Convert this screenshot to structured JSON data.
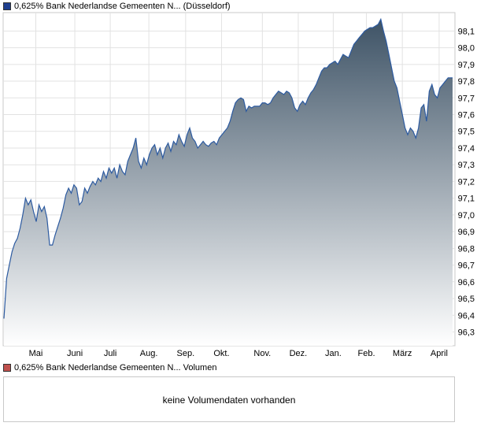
{
  "legend_price": {
    "label": "0,625% Bank Nederlandse Gemeenten N... (Düsseldorf)",
    "color": "#1f3f8f"
  },
  "legend_volume": {
    "label": "0,625% Bank Nederlandse Gemeenten N... Volumen",
    "color": "#c0504d"
  },
  "volume_message": "keine Volumendaten vorhanden",
  "chart_data": {
    "type": "area",
    "title": "",
    "xlabel": "",
    "ylabel": "",
    "ylim": [
      96.2,
      98.2
    ],
    "grid": true,
    "legend_placement": "top-left",
    "line_color": "#2c5aa0",
    "fill_color_top": "#3e5366",
    "fill_color_bottom": "#ffffff",
    "x_ticks": [
      {
        "label": "Mai",
        "t": 0.071
      },
      {
        "label": "Juni",
        "t": 0.158
      },
      {
        "label": "Juli",
        "t": 0.237
      },
      {
        "label": "Aug.",
        "t": 0.323
      },
      {
        "label": "Sep.",
        "t": 0.405
      },
      {
        "label": "Okt.",
        "t": 0.485
      },
      {
        "label": "Nov.",
        "t": 0.576
      },
      {
        "label": "Dez.",
        "t": 0.656
      },
      {
        "label": "Jan.",
        "t": 0.734
      },
      {
        "label": "Feb.",
        "t": 0.808
      },
      {
        "label": "März",
        "t": 0.888
      },
      {
        "label": "April",
        "t": 0.97
      }
    ],
    "y_ticks": [
      "96,3",
      "96,4",
      "96,5",
      "96,6",
      "96,7",
      "96,8",
      "96,9",
      "97,0",
      "97,1",
      "97,2",
      "97,3",
      "97,4",
      "97,5",
      "97,6",
      "97,7",
      "97,8",
      "97,9",
      "98,0",
      "98,1"
    ],
    "y_tick_values": [
      96.3,
      96.4,
      96.5,
      96.6,
      96.7,
      96.8,
      96.9,
      97.0,
      97.1,
      97.2,
      97.3,
      97.4,
      97.5,
      97.6,
      97.7,
      97.8,
      97.9,
      98.0,
      98.1
    ],
    "series": [
      {
        "points": [
          [
            0.0,
            96.38
          ],
          [
            0.006,
            96.62
          ],
          [
            0.012,
            96.7
          ],
          [
            0.018,
            96.78
          ],
          [
            0.024,
            96.83
          ],
          [
            0.03,
            96.86
          ],
          [
            0.036,
            96.92
          ],
          [
            0.042,
            97.0
          ],
          [
            0.048,
            97.1
          ],
          [
            0.054,
            97.06
          ],
          [
            0.06,
            97.09
          ],
          [
            0.066,
            97.02
          ],
          [
            0.072,
            96.96
          ],
          [
            0.078,
            97.06
          ],
          [
            0.084,
            97.02
          ],
          [
            0.09,
            97.05
          ],
          [
            0.096,
            96.98
          ],
          [
            0.102,
            96.82
          ],
          [
            0.108,
            96.82
          ],
          [
            0.114,
            96.88
          ],
          [
            0.12,
            96.93
          ],
          [
            0.126,
            96.98
          ],
          [
            0.132,
            97.04
          ],
          [
            0.138,
            97.12
          ],
          [
            0.144,
            97.16
          ],
          [
            0.15,
            97.13
          ],
          [
            0.156,
            97.18
          ],
          [
            0.162,
            97.16
          ],
          [
            0.168,
            97.06
          ],
          [
            0.174,
            97.08
          ],
          [
            0.18,
            97.16
          ],
          [
            0.186,
            97.13
          ],
          [
            0.192,
            97.17
          ],
          [
            0.198,
            97.2
          ],
          [
            0.204,
            97.18
          ],
          [
            0.21,
            97.22
          ],
          [
            0.216,
            97.2
          ],
          [
            0.222,
            97.26
          ],
          [
            0.228,
            97.22
          ],
          [
            0.234,
            97.28
          ],
          [
            0.24,
            97.25
          ],
          [
            0.246,
            97.28
          ],
          [
            0.252,
            97.22
          ],
          [
            0.258,
            97.3
          ],
          [
            0.264,
            97.26
          ],
          [
            0.27,
            97.24
          ],
          [
            0.276,
            97.32
          ],
          [
            0.282,
            97.36
          ],
          [
            0.288,
            97.4
          ],
          [
            0.294,
            97.46
          ],
          [
            0.3,
            97.32
          ],
          [
            0.306,
            97.28
          ],
          [
            0.312,
            97.34
          ],
          [
            0.318,
            97.3
          ],
          [
            0.324,
            97.36
          ],
          [
            0.33,
            97.4
          ],
          [
            0.336,
            97.42
          ],
          [
            0.342,
            97.36
          ],
          [
            0.348,
            97.4
          ],
          [
            0.354,
            97.34
          ],
          [
            0.36,
            97.4
          ],
          [
            0.366,
            97.43
          ],
          [
            0.372,
            97.38
          ],
          [
            0.378,
            97.44
          ],
          [
            0.384,
            97.42
          ],
          [
            0.39,
            97.48
          ],
          [
            0.396,
            97.44
          ],
          [
            0.402,
            97.41
          ],
          [
            0.408,
            97.48
          ],
          [
            0.414,
            97.52
          ],
          [
            0.42,
            97.46
          ],
          [
            0.426,
            97.44
          ],
          [
            0.432,
            97.4
          ],
          [
            0.438,
            97.42
          ],
          [
            0.444,
            97.44
          ],
          [
            0.45,
            97.42
          ],
          [
            0.456,
            97.41
          ],
          [
            0.462,
            97.43
          ],
          [
            0.468,
            97.44
          ],
          [
            0.474,
            97.42
          ],
          [
            0.48,
            97.46
          ],
          [
            0.486,
            97.48
          ],
          [
            0.492,
            97.5
          ],
          [
            0.498,
            97.52
          ],
          [
            0.504,
            97.56
          ],
          [
            0.51,
            97.62
          ],
          [
            0.516,
            97.67
          ],
          [
            0.522,
            97.69
          ],
          [
            0.528,
            97.7
          ],
          [
            0.534,
            97.69
          ],
          [
            0.54,
            97.62
          ],
          [
            0.546,
            97.65
          ],
          [
            0.552,
            97.64
          ],
          [
            0.558,
            97.65
          ],
          [
            0.564,
            97.65
          ],
          [
            0.57,
            97.65
          ],
          [
            0.576,
            97.67
          ],
          [
            0.582,
            97.67
          ],
          [
            0.588,
            97.66
          ],
          [
            0.594,
            97.67
          ],
          [
            0.6,
            97.7
          ],
          [
            0.606,
            97.72
          ],
          [
            0.612,
            97.74
          ],
          [
            0.618,
            97.73
          ],
          [
            0.624,
            97.72
          ],
          [
            0.63,
            97.74
          ],
          [
            0.636,
            97.73
          ],
          [
            0.642,
            97.7
          ],
          [
            0.648,
            97.64
          ],
          [
            0.654,
            97.62
          ],
          [
            0.66,
            97.66
          ],
          [
            0.666,
            97.68
          ],
          [
            0.672,
            97.66
          ],
          [
            0.678,
            97.7
          ],
          [
            0.684,
            97.73
          ],
          [
            0.69,
            97.75
          ],
          [
            0.696,
            97.78
          ],
          [
            0.702,
            97.82
          ],
          [
            0.708,
            97.86
          ],
          [
            0.714,
            97.88
          ],
          [
            0.72,
            97.88
          ],
          [
            0.726,
            97.9
          ],
          [
            0.732,
            97.91
          ],
          [
            0.738,
            97.92
          ],
          [
            0.744,
            97.9
          ],
          [
            0.75,
            97.93
          ],
          [
            0.756,
            97.96
          ],
          [
            0.762,
            97.95
          ],
          [
            0.768,
            97.94
          ],
          [
            0.774,
            97.98
          ],
          [
            0.78,
            98.02
          ],
          [
            0.786,
            98.04
          ],
          [
            0.792,
            98.06
          ],
          [
            0.798,
            98.08
          ],
          [
            0.804,
            98.1
          ],
          [
            0.81,
            98.11
          ],
          [
            0.816,
            98.12
          ],
          [
            0.822,
            98.12
          ],
          [
            0.828,
            98.13
          ],
          [
            0.834,
            98.14
          ],
          [
            0.84,
            98.17
          ],
          [
            0.846,
            98.1
          ],
          [
            0.852,
            98.04
          ],
          [
            0.858,
            97.96
          ],
          [
            0.864,
            97.88
          ],
          [
            0.87,
            97.8
          ],
          [
            0.876,
            97.76
          ],
          [
            0.882,
            97.68
          ],
          [
            0.888,
            97.6
          ],
          [
            0.894,
            97.52
          ],
          [
            0.9,
            97.48
          ],
          [
            0.906,
            97.52
          ],
          [
            0.912,
            97.5
          ],
          [
            0.918,
            97.46
          ],
          [
            0.924,
            97.52
          ],
          [
            0.93,
            97.64
          ],
          [
            0.936,
            97.66
          ],
          [
            0.942,
            97.56
          ],
          [
            0.948,
            97.74
          ],
          [
            0.954,
            97.78
          ],
          [
            0.96,
            97.72
          ],
          [
            0.966,
            97.7
          ],
          [
            0.972,
            97.76
          ],
          [
            0.978,
            97.78
          ],
          [
            0.984,
            97.8
          ],
          [
            0.99,
            97.82
          ],
          [
            1.0,
            97.82
          ]
        ]
      }
    ]
  }
}
